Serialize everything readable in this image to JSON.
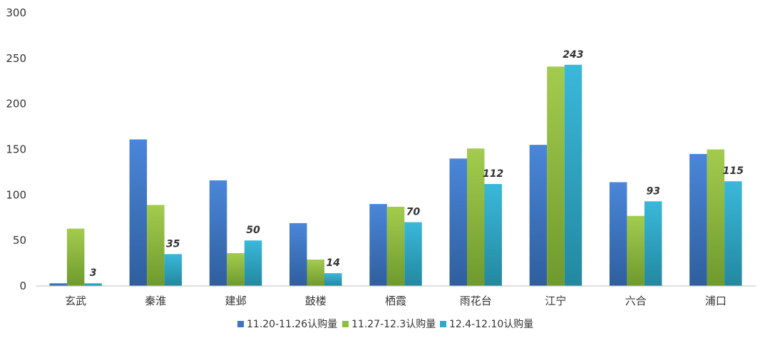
{
  "chart_data": {
    "type": "bar",
    "categories": [
      "玄武",
      "秦淮",
      "建邺",
      "鼓楼",
      "栖霞",
      "雨花台",
      "江宁",
      "六合",
      "浦口"
    ],
    "series": [
      {
        "name": "11.20-11.26认购量",
        "color": "#3d74c6",
        "values": [
          3,
          161,
          116,
          69,
          90,
          140,
          155,
          114,
          145
        ]
      },
      {
        "name": "11.27-12.3认购量",
        "color": "#8fbd3e",
        "values": [
          63,
          89,
          36,
          29,
          87,
          151,
          241,
          77,
          150
        ]
      },
      {
        "name": "12.4-12.10认购量",
        "color": "#2fa9c9",
        "values": [
          3,
          35,
          50,
          14,
          70,
          112,
          243,
          93,
          115
        ],
        "data_labels": true
      }
    ],
    "ylim": [
      0,
      300
    ],
    "yticks": [
      0,
      50,
      100,
      150,
      200,
      250,
      300
    ],
    "legend_position": "bottom",
    "grid": false
  }
}
